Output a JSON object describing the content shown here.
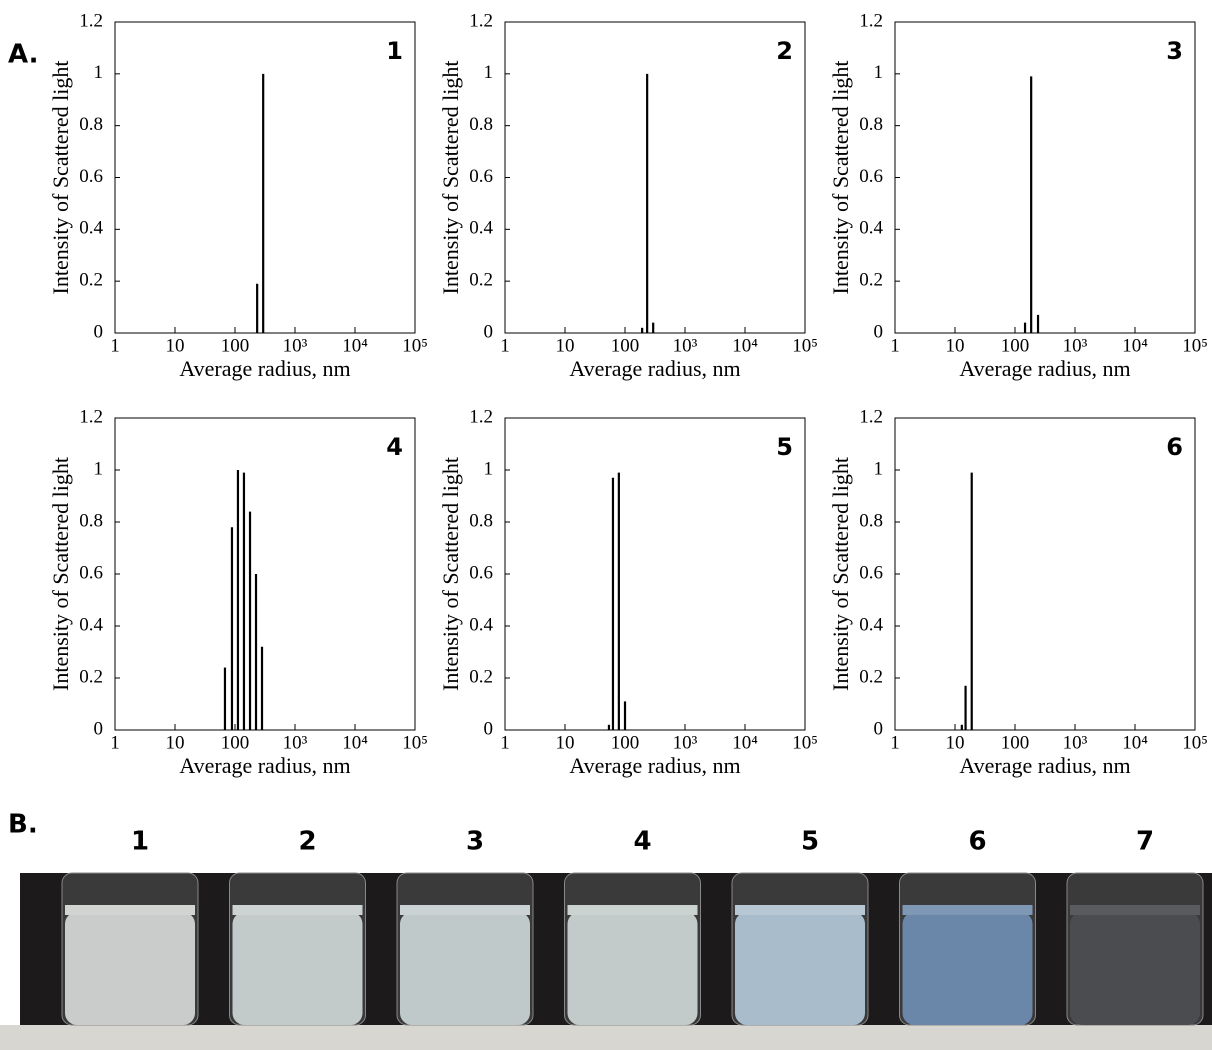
{
  "panel_a_label": "A.",
  "panel_b_label": "B.",
  "vial_labels": [
    "1",
    "2",
    "3",
    "4",
    "5",
    "6",
    "7"
  ],
  "chart_data": [
    {
      "type": "bar",
      "title": "1",
      "xlabel": "Average radius, nm",
      "ylabel": "Intensity of Scattered light",
      "log_x": true,
      "color": "#000000",
      "x": [
        234,
        295
      ],
      "values": [
        0.19,
        1.0
      ],
      "xlim": [
        1,
        100000
      ],
      "ylim": [
        0,
        1.2
      ],
      "xticks": [
        1,
        10,
        100,
        {
          "value": 1000,
          "label": "10³"
        },
        {
          "value": 10000,
          "label": "10⁴"
        },
        {
          "value": 100000,
          "label": "10⁵"
        }
      ],
      "yticks": [
        0,
        0.2,
        0.4,
        0.6,
        0.8,
        1,
        1.2
      ]
    },
    {
      "type": "bar",
      "title": "2",
      "xlabel": "Average radius, nm",
      "ylabel": "Intensity of Scattered light",
      "log_x": true,
      "color": "#000000",
      "x": [
        193,
        234,
        295
      ],
      "values": [
        0.02,
        1.0,
        0.04
      ],
      "xlim": [
        1,
        100000
      ],
      "ylim": [
        0,
        1.2
      ],
      "xticks": [
        1,
        10,
        100,
        {
          "value": 1000,
          "label": "10³"
        },
        {
          "value": 10000,
          "label": "10⁴"
        },
        {
          "value": 100000,
          "label": "10⁵"
        }
      ],
      "yticks": [
        0,
        0.2,
        0.4,
        0.6,
        0.8,
        1,
        1.2
      ]
    },
    {
      "type": "bar",
      "title": "3",
      "xlabel": "Average radius, nm",
      "ylabel": "Intensity of Scattered light",
      "log_x": true,
      "color": "#000000",
      "x": [
        147,
        186,
        242
      ],
      "values": [
        0.04,
        0.99,
        0.07
      ],
      "xlim": [
        1,
        100000
      ],
      "ylim": [
        0,
        1.2
      ],
      "xticks": [
        1,
        10,
        100,
        {
          "value": 1000,
          "label": "10³"
        },
        {
          "value": 10000,
          "label": "10⁴"
        },
        {
          "value": 100000,
          "label": "10⁵"
        }
      ],
      "yticks": [
        0,
        0.2,
        0.4,
        0.6,
        0.8,
        1,
        1.2
      ]
    },
    {
      "type": "bar",
      "title": "4",
      "xlabel": "Average radius, nm",
      "ylabel": "Intensity of Scattered light",
      "log_x": true,
      "color": "#000000",
      "x": [
        68,
        89,
        112,
        141,
        178,
        224,
        282
      ],
      "values": [
        0.24,
        0.78,
        1.0,
        0.99,
        0.84,
        0.6,
        0.32
      ],
      "xlim": [
        1,
        100000
      ],
      "ylim": [
        0,
        1.2
      ],
      "xticks": [
        1,
        10,
        100,
        {
          "value": 1000,
          "label": "10³"
        },
        {
          "value": 10000,
          "label": "10⁴"
        },
        {
          "value": 100000,
          "label": "10⁵"
        }
      ],
      "yticks": [
        0,
        0.2,
        0.4,
        0.6,
        0.8,
        1,
        1.2
      ]
    },
    {
      "type": "bar",
      "title": "5",
      "xlabel": "Average radius, nm",
      "ylabel": "Intensity of Scattered light",
      "log_x": true,
      "color": "#000000",
      "x": [
        54,
        63,
        79,
        100
      ],
      "values": [
        0.02,
        0.97,
        0.99,
        0.11
      ],
      "xlim": [
        1,
        100000
      ],
      "ylim": [
        0,
        1.2
      ],
      "xticks": [
        1,
        10,
        100,
        {
          "value": 1000,
          "label": "10³"
        },
        {
          "value": 10000,
          "label": "10⁴"
        },
        {
          "value": 100000,
          "label": "10⁵"
        }
      ],
      "yticks": [
        0,
        0.2,
        0.4,
        0.6,
        0.8,
        1,
        1.2
      ]
    },
    {
      "type": "bar",
      "title": "6",
      "xlabel": "Average radius, nm",
      "ylabel": "Intensity of Scattered light",
      "log_x": true,
      "color": "#000000",
      "x": [
        13,
        15,
        19
      ],
      "values": [
        0.02,
        0.17,
        0.99
      ],
      "xlim": [
        1,
        100000
      ],
      "ylim": [
        0,
        1.2
      ],
      "xticks": [
        1,
        10,
        100,
        {
          "value": 1000,
          "label": "10³"
        },
        {
          "value": 10000,
          "label": "10⁴"
        },
        {
          "value": 100000,
          "label": "10⁵"
        }
      ],
      "yticks": [
        0,
        0.2,
        0.4,
        0.6,
        0.8,
        1,
        1.2
      ]
    }
  ]
}
